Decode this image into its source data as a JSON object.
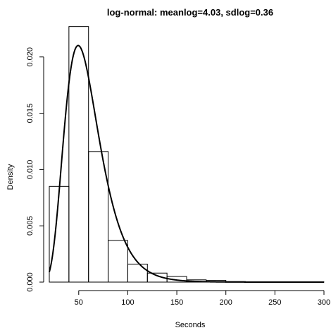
{
  "chart_data": {
    "type": "bar",
    "title": "log-normal: meanlog=4.03, sdlog=0.36",
    "xlabel": "Seconds",
    "ylabel": "Density",
    "xlim": [
      20,
      300
    ],
    "ylim": [
      0,
      0.0213
    ],
    "grid": false,
    "x_ticks": [
      50,
      100,
      150,
      200,
      250,
      300
    ],
    "x_tick_labels": [
      "50",
      "100",
      "150",
      "200",
      "250",
      "300"
    ],
    "y_ticks": [
      0,
      0.005,
      0.01,
      0.015,
      0.02
    ],
    "y_tick_labels": [
      "0.000",
      "0.005",
      "0.010",
      "0.015",
      "0.020"
    ],
    "histogram": {
      "bin_edges": [
        20,
        40,
        60,
        80,
        100,
        120,
        140,
        160,
        180,
        200,
        220,
        240,
        260,
        280,
        300
      ],
      "densities": [
        0.0085,
        0.0227,
        0.0116,
        0.0037,
        0.0016,
        0.0008,
        0.0005,
        0.0002,
        0.00015,
        5e-05,
        3e-05,
        2e-05,
        1e-05,
        1e-05
      ]
    },
    "density_curve": {
      "distribution": "lognormal",
      "meanlog": 4.03,
      "sdlog": 0.36
    }
  }
}
